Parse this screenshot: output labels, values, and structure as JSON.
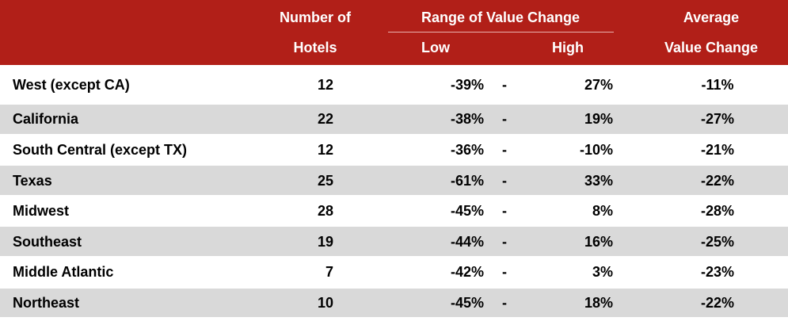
{
  "header": {
    "hotels": [
      "Number of",
      "Hotels"
    ],
    "range": "Range of Value Change",
    "low": "Low",
    "high": "High",
    "average": [
      "Average",
      "Value Change"
    ]
  },
  "range_separator": "-",
  "table": {
    "rows": [
      [
        "West (except CA)",
        12,
        "-39%",
        "27%",
        "-11%"
      ],
      [
        "California",
        22,
        "-38%",
        "19%",
        "-27%"
      ],
      [
        "South Central (except TX)",
        12,
        "-36%",
        "-10%",
        "-21%"
      ],
      [
        "Texas",
        25,
        "-61%",
        "33%",
        "-22%"
      ],
      [
        "Midwest",
        28,
        "-45%",
        "8%",
        "-28%"
      ],
      [
        "Southeast",
        19,
        "-44%",
        "16%",
        "-25%"
      ],
      [
        "Middle Atlantic",
        7,
        "-42%",
        "3%",
        "-23%"
      ],
      [
        "Northeast",
        10,
        "-45%",
        "18%",
        "-22%"
      ]
    ]
  }
}
